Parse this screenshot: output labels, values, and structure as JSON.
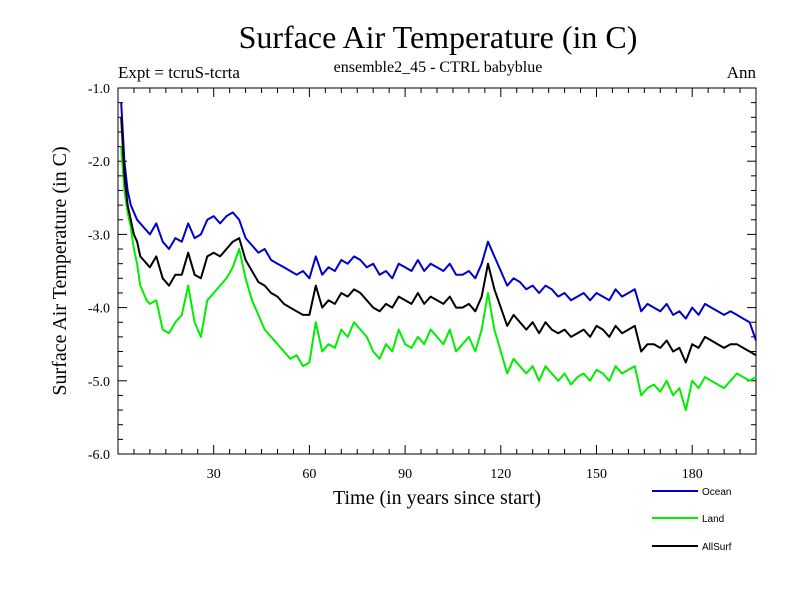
{
  "chart_data": {
    "type": "line",
    "title": "Surface Air Temperature (in C)",
    "subtitle": "ensemble2_45 - CTRL babyblue",
    "left_note": "Expt = tcruS-tcrta",
    "right_note": "Ann",
    "xlabel": "Time (in years since start)",
    "ylabel": "Surface Air Temperature (in C)",
    "xlim": [
      0,
      200
    ],
    "ylim": [
      -6.0,
      -1.0
    ],
    "xticks": [
      30,
      60,
      90,
      120,
      150,
      180
    ],
    "yticks": [
      -1.0,
      -2.0,
      -3.0,
      -4.0,
      -5.0,
      -6.0
    ],
    "grid": false,
    "legend_position": "bottom-right",
    "x": [
      1,
      2,
      3,
      4,
      5,
      6,
      7,
      8,
      9,
      10,
      12,
      14,
      16,
      18,
      20,
      22,
      24,
      26,
      28,
      30,
      32,
      34,
      36,
      38,
      40,
      42,
      44,
      46,
      48,
      50,
      52,
      54,
      56,
      58,
      60,
      62,
      64,
      66,
      68,
      70,
      72,
      74,
      76,
      78,
      80,
      82,
      84,
      86,
      88,
      90,
      92,
      94,
      96,
      98,
      100,
      102,
      104,
      106,
      108,
      110,
      112,
      114,
      116,
      118,
      120,
      122,
      124,
      126,
      128,
      130,
      132,
      134,
      136,
      138,
      140,
      142,
      144,
      146,
      148,
      150,
      152,
      154,
      156,
      158,
      160,
      162,
      164,
      166,
      168,
      170,
      172,
      174,
      176,
      178,
      180,
      182,
      184,
      186,
      188,
      190,
      192,
      194,
      196,
      198,
      200
    ],
    "series": [
      {
        "name": "Ocean",
        "color": "#0000cc",
        "values": [
          -1.2,
          -2.0,
          -2.4,
          -2.6,
          -2.7,
          -2.8,
          -2.85,
          -2.9,
          -2.95,
          -3.0,
          -2.85,
          -3.1,
          -3.2,
          -3.05,
          -3.1,
          -2.85,
          -3.05,
          -3.0,
          -2.8,
          -2.75,
          -2.85,
          -2.75,
          -2.7,
          -2.8,
          -3.05,
          -3.15,
          -3.25,
          -3.2,
          -3.35,
          -3.4,
          -3.45,
          -3.5,
          -3.55,
          -3.5,
          -3.6,
          -3.3,
          -3.55,
          -3.45,
          -3.5,
          -3.35,
          -3.4,
          -3.3,
          -3.35,
          -3.45,
          -3.4,
          -3.55,
          -3.5,
          -3.6,
          -3.4,
          -3.45,
          -3.5,
          -3.35,
          -3.5,
          -3.4,
          -3.45,
          -3.5,
          -3.4,
          -3.55,
          -3.55,
          -3.5,
          -3.6,
          -3.4,
          -3.1,
          -3.3,
          -3.5,
          -3.7,
          -3.6,
          -3.65,
          -3.75,
          -3.7,
          -3.8,
          -3.7,
          -3.75,
          -3.85,
          -3.8,
          -3.9,
          -3.85,
          -3.8,
          -3.9,
          -3.8,
          -3.85,
          -3.9,
          -3.75,
          -3.85,
          -3.8,
          -3.75,
          -4.05,
          -3.95,
          -4.0,
          -4.05,
          -3.95,
          -4.1,
          -4.05,
          -4.15,
          -4.0,
          -4.1,
          -3.95,
          -4.0,
          -4.05,
          -4.1,
          -4.05,
          -4.1,
          -4.15,
          -4.2,
          -4.45
        ]
      },
      {
        "name": "Land",
        "color": "#00ee00",
        "values": [
          -1.8,
          -2.4,
          -2.7,
          -2.9,
          -3.2,
          -3.4,
          -3.7,
          -3.8,
          -3.9,
          -3.95,
          -3.9,
          -4.3,
          -4.35,
          -4.2,
          -4.1,
          -3.7,
          -4.2,
          -4.4,
          -3.9,
          -3.8,
          -3.7,
          -3.6,
          -3.45,
          -3.2,
          -3.6,
          -3.9,
          -4.1,
          -4.3,
          -4.4,
          -4.5,
          -4.6,
          -4.7,
          -4.65,
          -4.8,
          -4.75,
          -4.2,
          -4.6,
          -4.5,
          -4.55,
          -4.3,
          -4.4,
          -4.2,
          -4.3,
          -4.4,
          -4.6,
          -4.7,
          -4.5,
          -4.6,
          -4.3,
          -4.5,
          -4.55,
          -4.4,
          -4.5,
          -4.3,
          -4.4,
          -4.5,
          -4.3,
          -4.6,
          -4.5,
          -4.4,
          -4.6,
          -4.3,
          -3.8,
          -4.3,
          -4.6,
          -4.9,
          -4.7,
          -4.8,
          -4.9,
          -4.8,
          -5.0,
          -4.8,
          -4.9,
          -5.0,
          -4.9,
          -5.05,
          -4.95,
          -4.9,
          -5.0,
          -4.85,
          -4.9,
          -5.0,
          -4.8,
          -4.9,
          -4.85,
          -4.8,
          -5.2,
          -5.1,
          -5.05,
          -5.15,
          -5.0,
          -5.2,
          -5.1,
          -5.4,
          -5.0,
          -5.1,
          -4.95,
          -5.0,
          -5.05,
          -5.1,
          -5.0,
          -4.9,
          -4.95,
          -5.0,
          -4.95
        ]
      },
      {
        "name": "AllSurf",
        "color": "#000000",
        "values": [
          -1.4,
          -2.2,
          -2.6,
          -2.8,
          -3.0,
          -3.1,
          -3.3,
          -3.35,
          -3.4,
          -3.45,
          -3.3,
          -3.6,
          -3.7,
          -3.55,
          -3.55,
          -3.25,
          -3.55,
          -3.6,
          -3.3,
          -3.25,
          -3.3,
          -3.2,
          -3.1,
          -3.05,
          -3.35,
          -3.5,
          -3.65,
          -3.7,
          -3.8,
          -3.85,
          -3.95,
          -4.0,
          -4.05,
          -4.1,
          -4.1,
          -3.7,
          -4.0,
          -3.9,
          -3.95,
          -3.8,
          -3.85,
          -3.75,
          -3.8,
          -3.9,
          -4.0,
          -4.05,
          -3.95,
          -4.0,
          -3.85,
          -3.9,
          -3.95,
          -3.8,
          -3.95,
          -3.85,
          -3.9,
          -3.95,
          -3.85,
          -4.0,
          -4.0,
          -3.95,
          -4.05,
          -3.85,
          -3.4,
          -3.75,
          -4.0,
          -4.25,
          -4.1,
          -4.2,
          -4.3,
          -4.2,
          -4.35,
          -4.2,
          -4.3,
          -4.35,
          -4.3,
          -4.4,
          -4.35,
          -4.3,
          -4.4,
          -4.25,
          -4.3,
          -4.4,
          -4.25,
          -4.35,
          -4.3,
          -4.25,
          -4.6,
          -4.5,
          -4.5,
          -4.55,
          -4.45,
          -4.6,
          -4.55,
          -4.75,
          -4.5,
          -4.55,
          -4.4,
          -4.45,
          -4.5,
          -4.55,
          -4.5,
          -4.5,
          -4.55,
          -4.6,
          -4.65
        ]
      }
    ]
  }
}
